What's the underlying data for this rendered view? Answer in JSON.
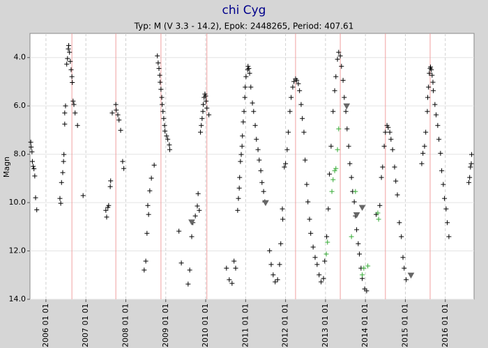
{
  "chart_data": {
    "type": "scatter",
    "title": "chi Cyg",
    "subtitle": "Typ: M (V 3.3 - 14.2), Epok: 2448265, Period: 407.61",
    "y_label": "Magn",
    "xlim": [
      2005.6,
      2016.72
    ],
    "xticks": [
      {
        "value": 2006,
        "label": "2006 01 01"
      },
      {
        "value": 2007,
        "label": "2007 01 01"
      },
      {
        "value": 2008,
        "label": "2008 01 01"
      },
      {
        "value": 2009,
        "label": "2009 01 01"
      },
      {
        "value": 2010,
        "label": "2010 01 01"
      },
      {
        "value": 2011,
        "label": "2011 01 01"
      },
      {
        "value": 2012,
        "label": "2012 01 01"
      },
      {
        "value": 2013,
        "label": "2013 01 01"
      },
      {
        "value": 2014,
        "label": "2014 01 01"
      },
      {
        "value": 2015,
        "label": "2015 01 01"
      },
      {
        "value": 2016,
        "label": "2016 01 01"
      }
    ],
    "ylim": [
      3.0,
      14.0
    ],
    "y_inverted": true,
    "yticks": [
      {
        "value": 4,
        "label": "4.0"
      },
      {
        "value": 6,
        "label": "6.0"
      },
      {
        "value": 8,
        "label": "8.0"
      },
      {
        "value": 10,
        "label": "10.0"
      },
      {
        "value": 12,
        "label": "12.0"
      },
      {
        "value": 14,
        "label": "14.0"
      }
    ],
    "grid": true,
    "epoch_lines": {
      "color": "#f0a0a0",
      "x": [
        2006.65,
        2007.75,
        2008.88,
        2010.03,
        2012.25,
        2013.37,
        2014.5,
        2015.62
      ]
    },
    "series": [
      {
        "color": "#000000",
        "marker": "plus",
        "x": [
          2005.62,
          2005.63,
          2005.65,
          2005.66,
          2005.68,
          2005.7,
          2005.72,
          2005.74,
          2005.77,
          2006.35,
          2006.37,
          2006.39,
          2006.42,
          2006.44,
          2006.45,
          2006.47,
          2006.47,
          2006.49,
          2006.52,
          2006.54,
          2006.56,
          2006.57,
          2006.59,
          2006.61,
          2006.63,
          2006.65,
          2006.66,
          2006.68,
          2006.7,
          2006.73,
          2006.79,
          2006.93,
          2007.5,
          2007.52,
          2007.55,
          2007.57,
          2007.61,
          2007.62,
          2007.66,
          2007.75,
          2007.76,
          2007.8,
          2007.83,
          2007.87,
          2007.92,
          2007.95,
          2008.46,
          2008.5,
          2008.53,
          2008.55,
          2008.57,
          2008.6,
          2008.64,
          2008.71,
          2008.79,
          2008.81,
          2008.83,
          2008.85,
          2008.86,
          2008.88,
          2008.9,
          2008.91,
          2008.93,
          2008.95,
          2008.97,
          2008.98,
          2009.02,
          2009.05,
          2009.09,
          2009.1,
          2009.33,
          2009.39,
          2009.56,
          2009.6,
          2009.65,
          2009.68,
          2009.74,
          2009.79,
          2009.81,
          2009.84,
          2009.87,
          2009.89,
          2009.91,
          2009.93,
          2009.94,
          2009.96,
          2009.98,
          2010.0,
          2010.01,
          2010.03,
          2010.08,
          2010.52,
          2010.59,
          2010.66,
          2010.71,
          2010.75,
          2010.8,
          2010.82,
          2010.84,
          2010.85,
          2010.87,
          2010.89,
          2010.91,
          2010.92,
          2010.94,
          2010.96,
          2010.98,
          2010.99,
          2011.01,
          2011.05,
          2011.06,
          2011.08,
          2011.1,
          2011.13,
          2011.17,
          2011.2,
          2011.24,
          2011.27,
          2011.31,
          2011.34,
          2011.38,
          2011.41,
          2011.45,
          2011.48,
          2011.6,
          2011.64,
          2011.69,
          2011.74,
          2011.8,
          2011.85,
          2011.88,
          2011.92,
          2011.93,
          2011.97,
          2012.0,
          2012.04,
          2012.07,
          2012.11,
          2012.14,
          2012.18,
          2012.21,
          2012.25,
          2012.28,
          2012.32,
          2012.35,
          2012.39,
          2012.42,
          2012.46,
          2012.49,
          2012.53,
          2012.56,
          2012.6,
          2012.63,
          2012.69,
          2012.74,
          2012.79,
          2012.84,
          2012.89,
          2012.95,
          2012.98,
          2013.03,
          2013.07,
          2013.1,
          2013.14,
          2013.19,
          2013.23,
          2013.26,
          2013.3,
          2013.33,
          2013.37,
          2013.4,
          2013.44,
          2013.47,
          2013.51,
          2013.54,
          2013.58,
          2013.61,
          2013.65,
          2013.68,
          2013.72,
          2013.75,
          2013.78,
          2013.82,
          2013.85,
          2013.89,
          2013.92,
          2013.98,
          2014.03,
          2014.27,
          2014.36,
          2014.4,
          2014.43,
          2014.47,
          2014.5,
          2014.54,
          2014.57,
          2014.61,
          2014.64,
          2014.68,
          2014.73,
          2014.76,
          2014.8,
          2014.85,
          2014.9,
          2014.94,
          2014.97,
          2015.02,
          2015.41,
          2015.44,
          2015.48,
          2015.51,
          2015.55,
          2015.56,
          2015.58,
          2015.6,
          2015.62,
          2015.63,
          2015.65,
          2015.67,
          2015.69,
          2015.7,
          2015.74,
          2015.77,
          2015.81,
          2015.84,
          2015.88,
          2015.91,
          2015.95,
          2015.98,
          2016.02,
          2016.05,
          2016.09,
          2016.59,
          2016.61,
          2016.63,
          2016.65,
          2016.66
        ],
        "values": [
          7.5,
          7.7,
          7.9,
          8.3,
          8.5,
          8.6,
          8.9,
          9.8,
          10.3,
          9.83,
          10.03,
          9.17,
          8.76,
          8.3,
          8.01,
          6.75,
          6.29,
          6.0,
          4.27,
          4.04,
          3.64,
          3.5,
          3.78,
          4.16,
          4.5,
          4.79,
          5.03,
          5.8,
          5.94,
          6.29,
          6.81,
          9.71,
          10.32,
          10.6,
          10.2,
          10.12,
          9.34,
          9.1,
          6.29,
          5.94,
          6.17,
          6.37,
          6.58,
          7.01,
          8.3,
          8.59,
          12.79,
          12.42,
          11.27,
          10.12,
          10.49,
          9.51,
          8.99,
          8.45,
          3.93,
          4.22,
          4.45,
          4.73,
          5.02,
          5.31,
          5.65,
          5.94,
          6.23,
          6.52,
          6.81,
          7.04,
          7.24,
          7.38,
          7.61,
          7.81,
          11.18,
          12.5,
          13.37,
          12.79,
          11.41,
          10.83,
          10.55,
          10.14,
          9.63,
          10.32,
          7.09,
          6.81,
          6.52,
          6.23,
          5.94,
          5.65,
          5.51,
          5.59,
          5.8,
          6.09,
          6.37,
          12.71,
          13.19,
          13.34,
          12.42,
          12.71,
          10.32,
          9.83,
          9.4,
          8.96,
          8.3,
          8.01,
          7.67,
          7.24,
          6.66,
          6.23,
          5.65,
          5.22,
          4.79,
          4.5,
          4.36,
          4.45,
          4.65,
          5.22,
          5.88,
          6.23,
          6.81,
          7.38,
          7.81,
          8.24,
          8.68,
          9.17,
          9.54,
          9.97,
          11.99,
          12.56,
          12.99,
          13.28,
          13.19,
          12.56,
          11.7,
          10.26,
          10.69,
          8.53,
          8.39,
          7.81,
          7.09,
          6.23,
          5.65,
          5.22,
          4.99,
          4.88,
          4.94,
          5.08,
          5.37,
          5.94,
          6.52,
          7.09,
          8.24,
          9.25,
          9.97,
          10.69,
          11.27,
          11.84,
          12.27,
          12.56,
          12.99,
          13.28,
          13.14,
          12.42,
          11.41,
          10.26,
          8.82,
          7.67,
          6.23,
          5.37,
          4.79,
          4.07,
          3.78,
          3.93,
          4.36,
          4.94,
          5.65,
          6.23,
          6.95,
          7.67,
          8.39,
          8.96,
          9.54,
          9.97,
          10.55,
          11.12,
          11.7,
          12.13,
          12.71,
          13.14,
          13.57,
          13.65,
          10.49,
          10.12,
          8.96,
          8.53,
          7.67,
          7.09,
          6.81,
          6.89,
          7.09,
          7.38,
          7.81,
          8.53,
          9.11,
          9.68,
          10.83,
          11.41,
          12.27,
          12.71,
          13.19,
          8.39,
          7.96,
          7.67,
          7.09,
          6.23,
          5.65,
          5.22,
          4.65,
          4.45,
          4.39,
          4.5,
          4.73,
          5.02,
          5.37,
          5.94,
          6.37,
          6.81,
          7.38,
          7.96,
          8.68,
          9.25,
          9.83,
          10.26,
          10.83,
          11.41,
          9.17,
          8.96,
          8.53,
          8.39,
          8.01
        ]
      },
      {
        "color": "#33aa33",
        "marker": "plus",
        "x": [
          2013.02,
          2013.05,
          2013.16,
          2013.19,
          2013.23,
          2013.26,
          2013.3,
          2013.33,
          2013.65,
          2013.75,
          2013.92,
          2013.96,
          2014.06,
          2014.31,
          2014.33
        ],
        "values": [
          12.13,
          11.64,
          9.54,
          9.05,
          8.68,
          8.59,
          7.81,
          6.95,
          11.41,
          9.54,
          12.99,
          12.71,
          12.62,
          10.43,
          10.69
        ]
      },
      {
        "color": "#666666",
        "marker": "triangle-down",
        "x": [
          2009.65,
          2011.5,
          2013.53,
          2013.78,
          2013.92,
          2015.14
        ],
        "values": [
          10.8,
          10.0,
          6.0,
          10.5,
          10.2,
          13.0
        ]
      }
    ]
  }
}
